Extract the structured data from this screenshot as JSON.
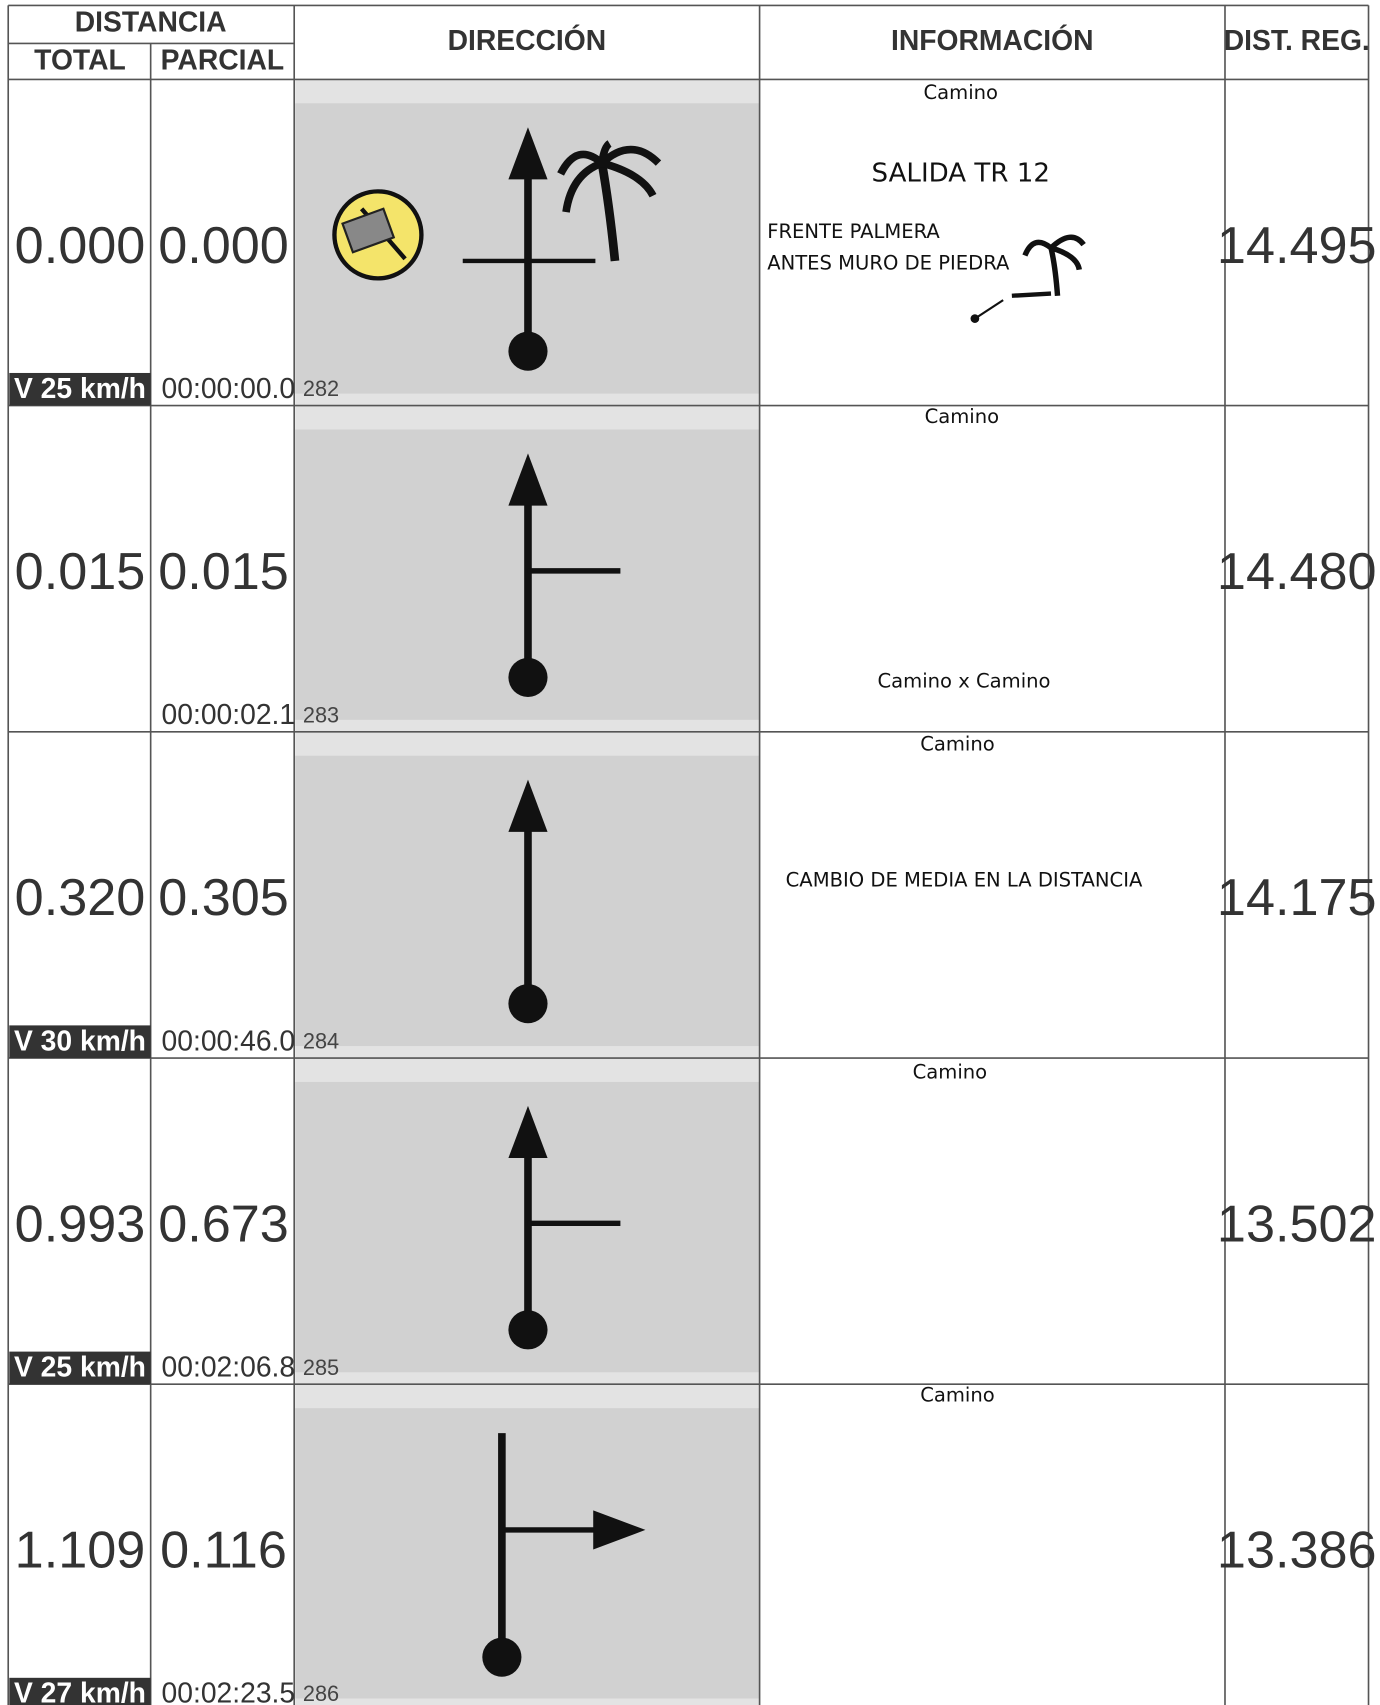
{
  "header": {
    "distancia": "DISTANCIA",
    "total": "TOTAL",
    "parcial": "PARCIAL",
    "direccion": "DIRECCIÓN",
    "informacion": "INFORMACIÓN",
    "dist_reg": "DIST. REG."
  },
  "rows": [
    {
      "total": "0.000",
      "partial": "0.000",
      "speed": "V 25 km/h",
      "time": "00:00:00.0",
      "number": 282,
      "info": [
        "Camino",
        "SALIDA TR 12",
        "FRENTE PALMERA",
        "ANTES MURO DE PIEDRA"
      ],
      "dist_reg": "14.495"
    },
    {
      "total": "0.015",
      "partial": "0.015",
      "time": "00:00:02.1",
      "number": 283,
      "info": [
        "Camino",
        "Camino x Camino"
      ],
      "dist_reg": "14.480"
    },
    {
      "total": "0.320",
      "partial": "0.305",
      "speed": "V 30 km/h",
      "time": "00:00:46.0",
      "number": 284,
      "info": [
        "Camino",
        "CAMBIO DE MEDIA EN LA DISTANCIA"
      ],
      "dist_reg": "14.175"
    },
    {
      "total": "0.993",
      "partial": "0.673",
      "speed": "V 25 km/h",
      "time": "00:02:06.8",
      "number": 285,
      "info": [
        "Camino"
      ],
      "dist_reg": "13.502"
    },
    {
      "total": "1.109",
      "partial": "0.116",
      "speed": "V 27 km/h",
      "time": "00:02:23.5",
      "number": 286,
      "info": [
        "Camino"
      ],
      "dist_reg": "13.386"
    }
  ]
}
